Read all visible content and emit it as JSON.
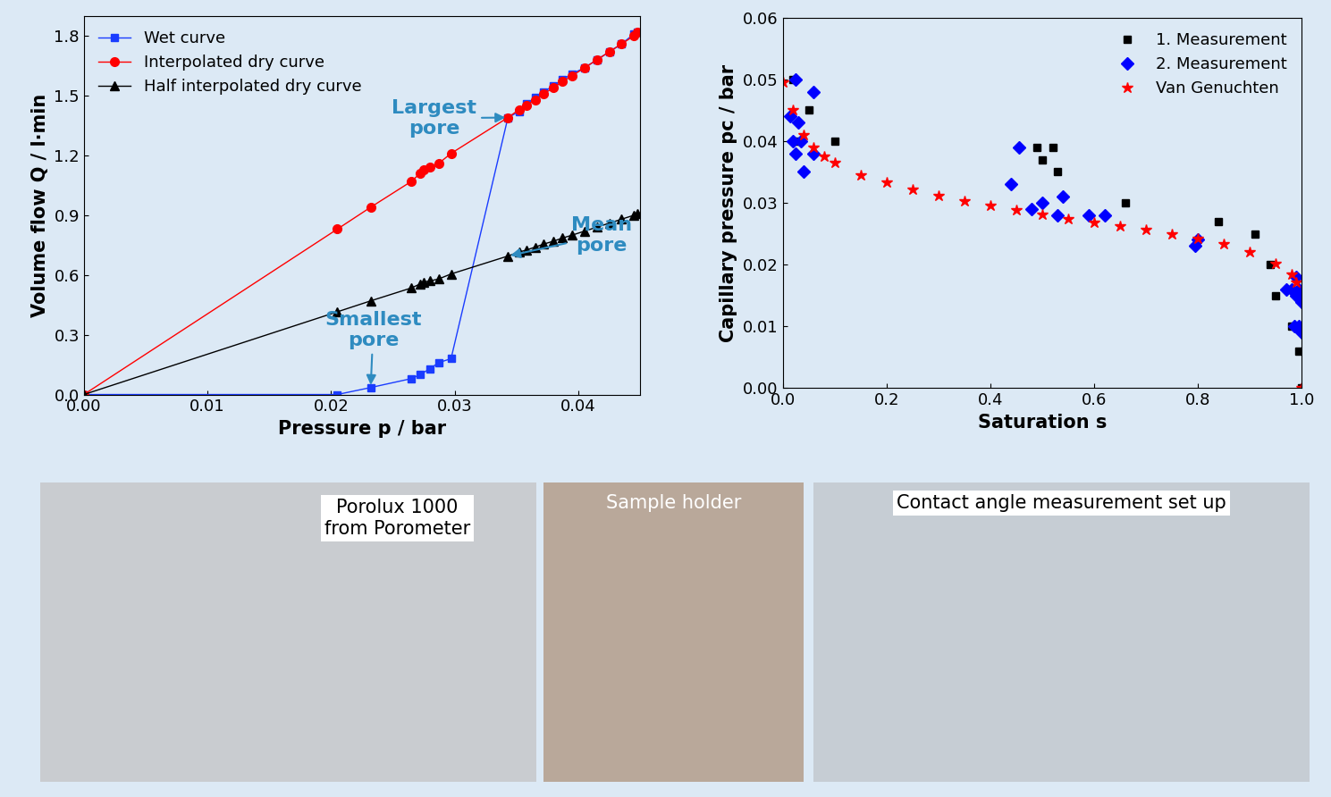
{
  "chart_data": [
    {
      "type": "line",
      "xlabel": "Pressure p / bar",
      "ylabel": "Volume flow Q / l·min",
      "xlim": [
        0,
        0.045
      ],
      "ylim": [
        0,
        1.9
      ],
      "xticks": [
        {
          "value": 0,
          "label": "0.00"
        },
        {
          "value": 0.01,
          "label": "0.01"
        },
        {
          "value": 0.02,
          "label": "0.02"
        },
        {
          "value": 0.03,
          "label": "0.03"
        },
        {
          "value": 0.04,
          "label": "0.04"
        }
      ],
      "yticks": [
        {
          "value": 0,
          "label": "0.0"
        },
        {
          "value": 0.3,
          "label": "0.3"
        },
        {
          "value": 0.6,
          "label": "0.6"
        },
        {
          "value": 0.9,
          "label": "0.9"
        },
        {
          "value": 1.2,
          "label": "1.2"
        },
        {
          "value": 1.5,
          "label": "1.5"
        },
        {
          "value": 1.8,
          "label": "1.8"
        }
      ],
      "legend": "upper left",
      "annotations": [
        "Largest\npore",
        "Smallest\npore",
        "Mean\npore"
      ],
      "series": [
        {
          "name": "Wet curve",
          "color": "#1a3cff",
          "marker": "square",
          "x": [
            0,
            0.0205,
            0.0232,
            0.0265,
            0.0272,
            0.028,
            0.0287,
            0.0297,
            0.0343,
            0.0352,
            0.0358,
            0.0365,
            0.0372,
            0.038,
            0.0387,
            0.0395,
            0.0405,
            0.0415,
            0.0425,
            0.0435,
            0.0445,
            0.0448
          ],
          "values": [
            0,
            0.0,
            0.035,
            0.08,
            0.1,
            0.13,
            0.16,
            0.18,
            1.39,
            1.42,
            1.46,
            1.49,
            1.52,
            1.55,
            1.58,
            1.61,
            1.64,
            1.68,
            1.72,
            1.76,
            1.81,
            1.82
          ]
        },
        {
          "name": "Interpolated dry curve",
          "color": "#ff0000",
          "marker": "circle",
          "x": [
            0,
            0.0205,
            0.0232,
            0.0265,
            0.0272,
            0.0275,
            0.028,
            0.0287,
            0.0297,
            0.0343,
            0.0352,
            0.0358,
            0.0365,
            0.0372,
            0.038,
            0.0387,
            0.0395,
            0.0405,
            0.0415,
            0.0425,
            0.0435,
            0.0445,
            0.0448
          ],
          "values": [
            0,
            0.83,
            0.94,
            1.07,
            1.11,
            1.13,
            1.14,
            1.16,
            1.21,
            1.39,
            1.43,
            1.45,
            1.48,
            1.51,
            1.54,
            1.57,
            1.6,
            1.64,
            1.68,
            1.72,
            1.76,
            1.8,
            1.82
          ]
        },
        {
          "name": "Half interpolated dry curve",
          "color": "#000000",
          "marker": "triangle",
          "x": [
            0,
            0.0205,
            0.0232,
            0.0265,
            0.0272,
            0.0275,
            0.028,
            0.0287,
            0.0297,
            0.0343,
            0.0352,
            0.0358,
            0.0365,
            0.0372,
            0.038,
            0.0387,
            0.0395,
            0.0405,
            0.0415,
            0.0425,
            0.0435,
            0.0445,
            0.0448
          ],
          "values": [
            0,
            0.415,
            0.47,
            0.535,
            0.555,
            0.565,
            0.57,
            0.58,
            0.605,
            0.695,
            0.715,
            0.725,
            0.74,
            0.755,
            0.77,
            0.785,
            0.8,
            0.82,
            0.84,
            0.86,
            0.88,
            0.9,
            0.91
          ]
        }
      ]
    },
    {
      "type": "scatter",
      "xlabel": "Saturation s",
      "ylabel": "Capillary pressure pc / bar",
      "xlim": [
        0,
        1.0
      ],
      "ylim": [
        0,
        0.06
      ],
      "xticks": [
        {
          "value": 0,
          "label": "0.0"
        },
        {
          "value": 0.2,
          "label": "0.2"
        },
        {
          "value": 0.4,
          "label": "0.4"
        },
        {
          "value": 0.6,
          "label": "0.6"
        },
        {
          "value": 0.8,
          "label": "0.8"
        },
        {
          "value": 1.0,
          "label": "1.0"
        }
      ],
      "yticks": [
        {
          "value": 0,
          "label": "0.00"
        },
        {
          "value": 0.01,
          "label": "0.01"
        },
        {
          "value": 0.02,
          "label": "0.02"
        },
        {
          "value": 0.03,
          "label": "0.03"
        },
        {
          "value": 0.04,
          "label": "0.04"
        },
        {
          "value": 0.05,
          "label": "0.05"
        },
        {
          "value": 0.06,
          "label": "0.06"
        }
      ],
      "legend": "upper right",
      "series": [
        {
          "name": "1. Measurement",
          "color": "#000000",
          "marker": "square",
          "x": [
            0.02,
            0.03,
            0.05,
            0.1,
            0.49,
            0.5,
            0.52,
            0.53,
            0.66,
            0.84,
            0.91,
            0.94,
            0.95,
            0.98,
            0.995,
            1.0
          ],
          "values": [
            0.05,
            0.04,
            0.045,
            0.04,
            0.039,
            0.037,
            0.039,
            0.035,
            0.03,
            0.027,
            0.025,
            0.02,
            0.015,
            0.01,
            0.006,
            0.0
          ]
        },
        {
          "name": "2. Measurement",
          "color": "#0000ff",
          "marker": "diamond",
          "x": [
            0.015,
            0.02,
            0.025,
            0.025,
            0.03,
            0.035,
            0.04,
            0.06,
            0.06,
            0.44,
            0.455,
            0.48,
            0.5,
            0.53,
            0.54,
            0.59,
            0.62,
            0.795,
            0.8,
            0.97,
            0.98,
            0.985,
            0.99,
            0.99,
            0.995,
            1.0,
            1.0,
            0.995
          ],
          "values": [
            0.044,
            0.04,
            0.05,
            0.038,
            0.043,
            0.04,
            0.035,
            0.048,
            0.038,
            0.033,
            0.039,
            0.029,
            0.03,
            0.028,
            0.031,
            0.028,
            0.028,
            0.023,
            0.024,
            0.016,
            0.016,
            0.01,
            0.018,
            0.015,
            0.01,
            0.009,
            0.014,
            0.016
          ]
        },
        {
          "name": "Van Genuchten",
          "color": "#ff0000",
          "marker": "star",
          "x": [
            0,
            0.02,
            0.04,
            0.06,
            0.08,
            0.1,
            0.15,
            0.2,
            0.25,
            0.3,
            0.35,
            0.4,
            0.45,
            0.5,
            0.55,
            0.6,
            0.65,
            0.7,
            0.75,
            0.8,
            0.85,
            0.9,
            0.95,
            0.98,
            0.99,
            1.0
          ],
          "values": [
            0.0495,
            0.045,
            0.041,
            0.039,
            0.0375,
            0.0365,
            0.0345,
            0.0333,
            0.0322,
            0.0312,
            0.0303,
            0.0295,
            0.0288,
            0.0281,
            0.0274,
            0.0268,
            0.0262,
            0.0256,
            0.025,
            0.0242,
            0.0233,
            0.0221,
            0.0202,
            0.0185,
            0.0172,
            0.0
          ]
        }
      ]
    }
  ],
  "images": [
    {
      "label": "Porolux 1000\nfrom Porometer"
    },
    {
      "label": "Sample holder"
    },
    {
      "label": "Contact angle measurement set up"
    }
  ]
}
